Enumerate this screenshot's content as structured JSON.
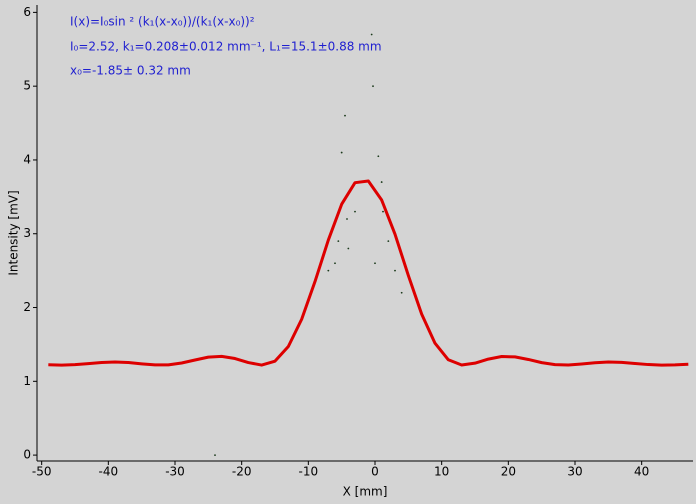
{
  "chart_data": {
    "type": "line",
    "xlabel": "X [mm]",
    "ylabel": "Intensity [mV]",
    "annotations": [
      "I(x)=I₀sin ² (k₁(x-x₀))/(k₁(x-x₀))²",
      "I₀=2.52,  k₁=0.208±0.012 mm⁻¹,   L₁=15.1±0.88 mm",
      "x₀=-1.85±  0.32 mm"
    ],
    "xlim": [
      -50.7,
      47.7
    ],
    "ylim": [
      -0.08,
      6.1
    ],
    "xticks": [
      -50,
      -40,
      -30,
      -20,
      -10,
      0,
      10,
      20,
      30,
      40
    ],
    "yticks": [
      0,
      1,
      2,
      3,
      4,
      5,
      6
    ],
    "series": [
      {
        "type": "scatter",
        "color": "#1c3a1c",
        "x": [
          -4.5,
          -5,
          -0.5,
          -0.3,
          0.5,
          1,
          -3,
          -4,
          -6,
          1.2,
          2,
          0,
          -24,
          -4.2,
          3,
          -5.5,
          -7,
          4
        ],
        "values": [
          4.6,
          4.1,
          5.7,
          5.0,
          4.05,
          3.7,
          3.3,
          2.8,
          2.6,
          3.3,
          2.9,
          2.6,
          0,
          3.2,
          2.5,
          2.9,
          2.5,
          2.2
        ]
      },
      {
        "type": "line",
        "color": "#dd0000",
        "x": [
          -49,
          -47,
          -45,
          -43,
          -41,
          -39,
          -37,
          -35,
          -33,
          -31,
          -29,
          -27,
          -25,
          -23,
          -21,
          -19,
          -17,
          -15,
          -13,
          -11,
          -9,
          -7,
          -5,
          -3,
          -1,
          1,
          3,
          5,
          7,
          9,
          11,
          13,
          15,
          17,
          19,
          21,
          23,
          25,
          27,
          29,
          31,
          33,
          35,
          37,
          39,
          41,
          43,
          45,
          47
        ],
        "values": [
          1.224,
          1.22,
          1.226,
          1.24,
          1.255,
          1.262,
          1.255,
          1.237,
          1.222,
          1.223,
          1.248,
          1.289,
          1.328,
          1.338,
          1.309,
          1.254,
          1.22,
          1.273,
          1.472,
          1.841,
          2.352,
          2.914,
          3.4,
          3.692,
          3.714,
          3.457,
          2.994,
          2.435,
          1.91,
          1.516,
          1.292,
          1.221,
          1.246,
          1.301,
          1.336,
          1.331,
          1.296,
          1.253,
          1.226,
          1.221,
          1.235,
          1.252,
          1.261,
          1.257,
          1.242,
          1.227,
          1.22,
          1.223,
          1.231
        ]
      }
    ]
  }
}
